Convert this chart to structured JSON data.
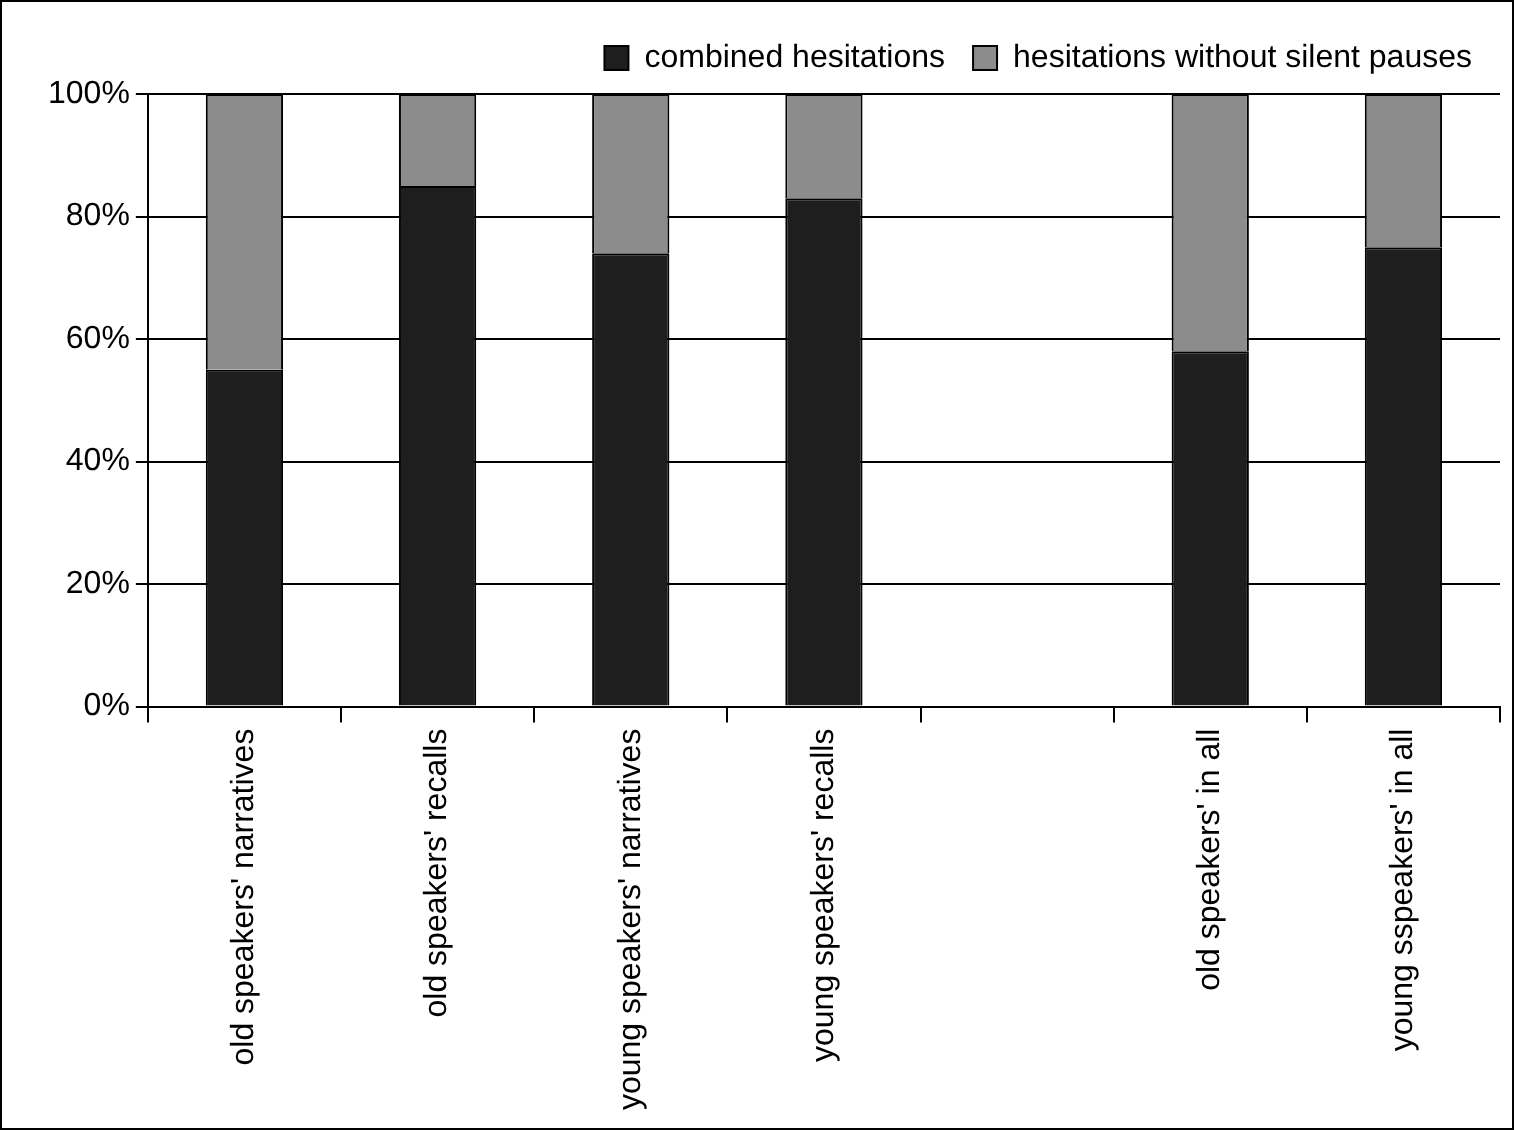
{
  "chart_data": {
    "type": "bar",
    "stacked": true,
    "categories": [
      "old speakers' narratives",
      "old speakers' recalls",
      "young speakers' narratives",
      "young speakers' recalls",
      null,
      "old speakers' in all",
      "young sspeakers' in all"
    ],
    "series": [
      {
        "name": "combined hesitations",
        "color": "#1e1e1e",
        "values": [
          55,
          85,
          74,
          83,
          null,
          58,
          75
        ]
      },
      {
        "name": "hesitations without silent pauses",
        "color": "#8c8c8c",
        "values": [
          45,
          15,
          26,
          17,
          null,
          42,
          25
        ]
      }
    ],
    "ylim": [
      0,
      100
    ],
    "yticks": [
      {
        "value": 0,
        "label": "0%"
      },
      {
        "value": 20,
        "label": "20%"
      },
      {
        "value": 40,
        "label": "40%"
      },
      {
        "value": 60,
        "label": "60%"
      },
      {
        "value": 80,
        "label": "80%"
      },
      {
        "value": 100,
        "label": "100%"
      }
    ],
    "grid": "y",
    "legend": "top"
  }
}
